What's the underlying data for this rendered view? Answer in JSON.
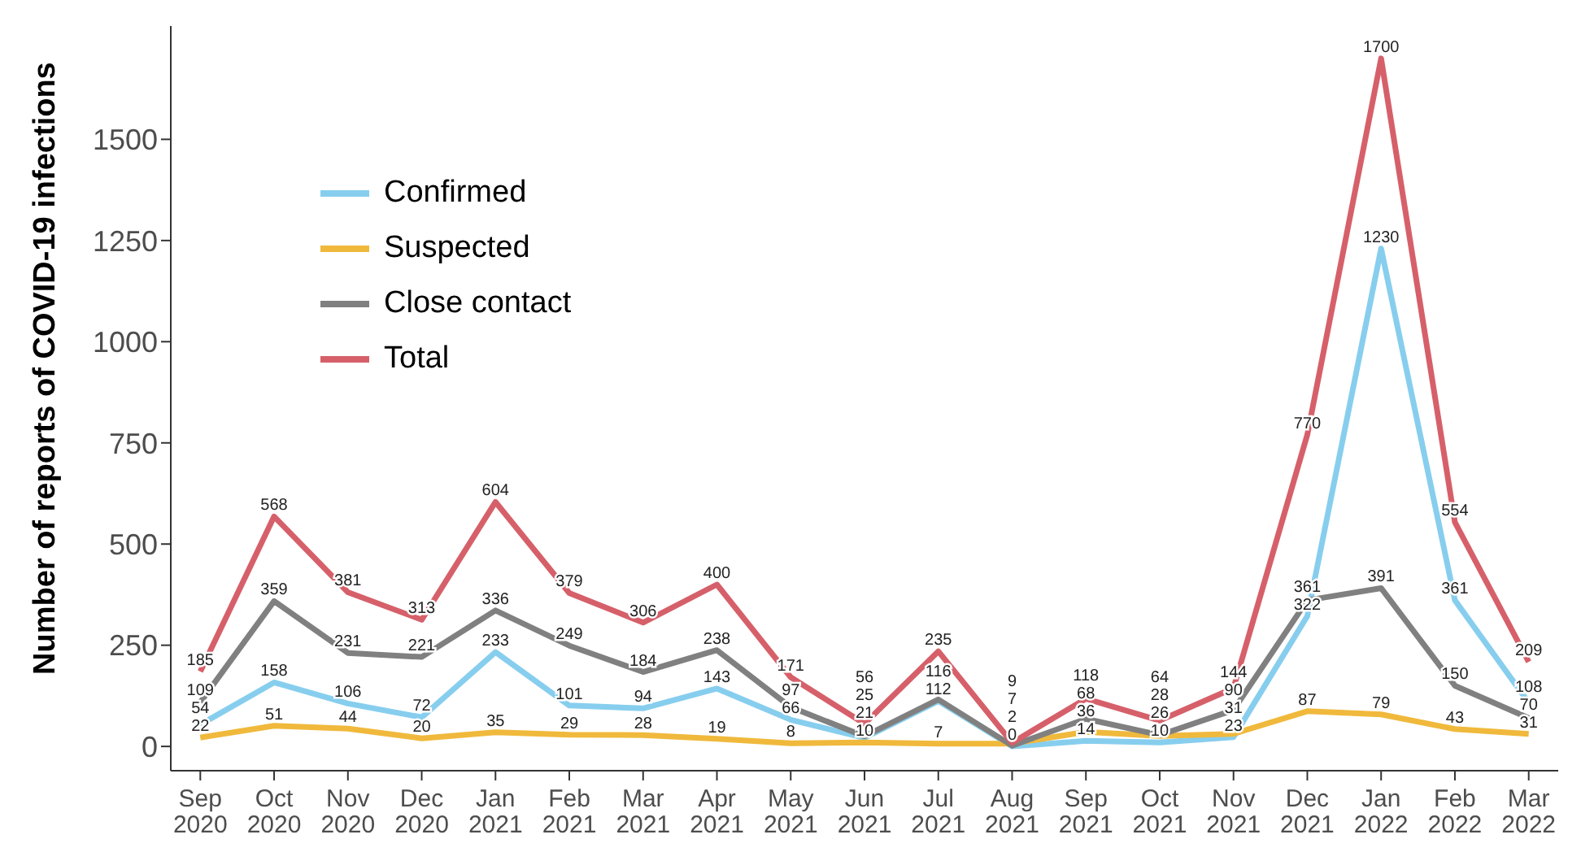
{
  "chart_data": {
    "type": "line",
    "ylabel": "Number of reports of COVID-19 infections",
    "categories": [
      "Sep\n2020",
      "Oct\n2020",
      "Nov\n2020",
      "Dec\n2020",
      "Jan\n2021",
      "Feb\n2021",
      "Mar\n2021",
      "Apr\n2021",
      "May\n2021",
      "Jun\n2021",
      "Jul\n2021",
      "Aug\n2021",
      "Sep\n2021",
      "Oct\n2021",
      "Nov\n2021",
      "Dec\n2021",
      "Jan\n2022",
      "Feb\n2022",
      "Mar\n2022"
    ],
    "series": [
      {
        "name": "Confirmed",
        "color": "#87ceee",
        "values": [
          54,
          158,
          106,
          72,
          233,
          101,
          94,
          143,
          66,
          21,
          112,
          0,
          14,
          10,
          23,
          322,
          1230,
          361,
          108
        ]
      },
      {
        "name": "Suspected",
        "color": "#f0b93c",
        "values": [
          22,
          51,
          44,
          20,
          35,
          29,
          28,
          19,
          8,
          10,
          7,
          7,
          36,
          26,
          31,
          87,
          79,
          43,
          31
        ]
      },
      {
        "name": "Close contact",
        "color": "#808080",
        "values": [
          109,
          359,
          231,
          221,
          336,
          249,
          184,
          238,
          97,
          25,
          116,
          2,
          68,
          28,
          90,
          361,
          391,
          150,
          70
        ]
      },
      {
        "name": "Total",
        "color": "#d6606a",
        "values": [
          185,
          568,
          381,
          313,
          604,
          379,
          306,
          400,
          171,
          56,
          235,
          9,
          118,
          64,
          144,
          770,
          1700,
          554,
          209
        ]
      }
    ],
    "ylim": [
      -60,
      1780
    ],
    "yticks": [
      0,
      250,
      500,
      750,
      1000,
      1250,
      1500
    ],
    "grid": false,
    "legend": "top left",
    "data_labels": true,
    "marker": "none",
    "line_style": "solid"
  }
}
